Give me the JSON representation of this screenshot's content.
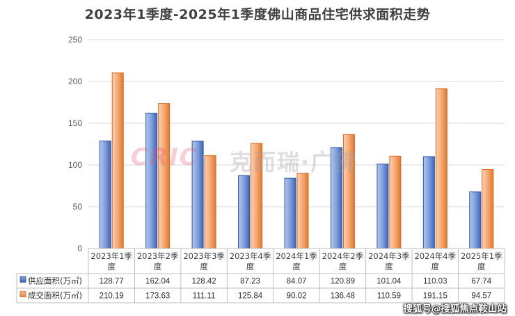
{
  "chart_data": {
    "type": "bar",
    "title": "2023年1季度-2025年1季度佛山商品住宅供求面积走势",
    "categories": [
      "2023年1季度",
      "2023年2季度",
      "2023年3季度",
      "2023年4季度",
      "2024年1季度",
      "2024年2季度",
      "2024年3季度",
      "2024年4季度",
      "2025年1季度"
    ],
    "series": [
      {
        "name": "供应面积(万㎡)",
        "values": [
          128.77,
          162.04,
          128.42,
          87.23,
          84.07,
          120.89,
          101.04,
          110.03,
          67.74
        ],
        "color": "#4472C4"
      },
      {
        "name": "成交面积(万㎡)",
        "values": [
          210.19,
          173.63,
          111.11,
          125.84,
          90.02,
          136.48,
          110.59,
          191.15,
          94.57
        ],
        "color": "#ED7D31"
      }
    ],
    "ylim": [
      0,
      250
    ],
    "yticks": [
      0,
      50,
      100,
      150,
      200,
      250
    ],
    "grid": true,
    "legend": "data-table"
  },
  "watermark": {
    "logo": "CRIC",
    "text": "克而瑞·广佛"
  },
  "credit": "搜狐号@搜狐焦点鞍山站"
}
